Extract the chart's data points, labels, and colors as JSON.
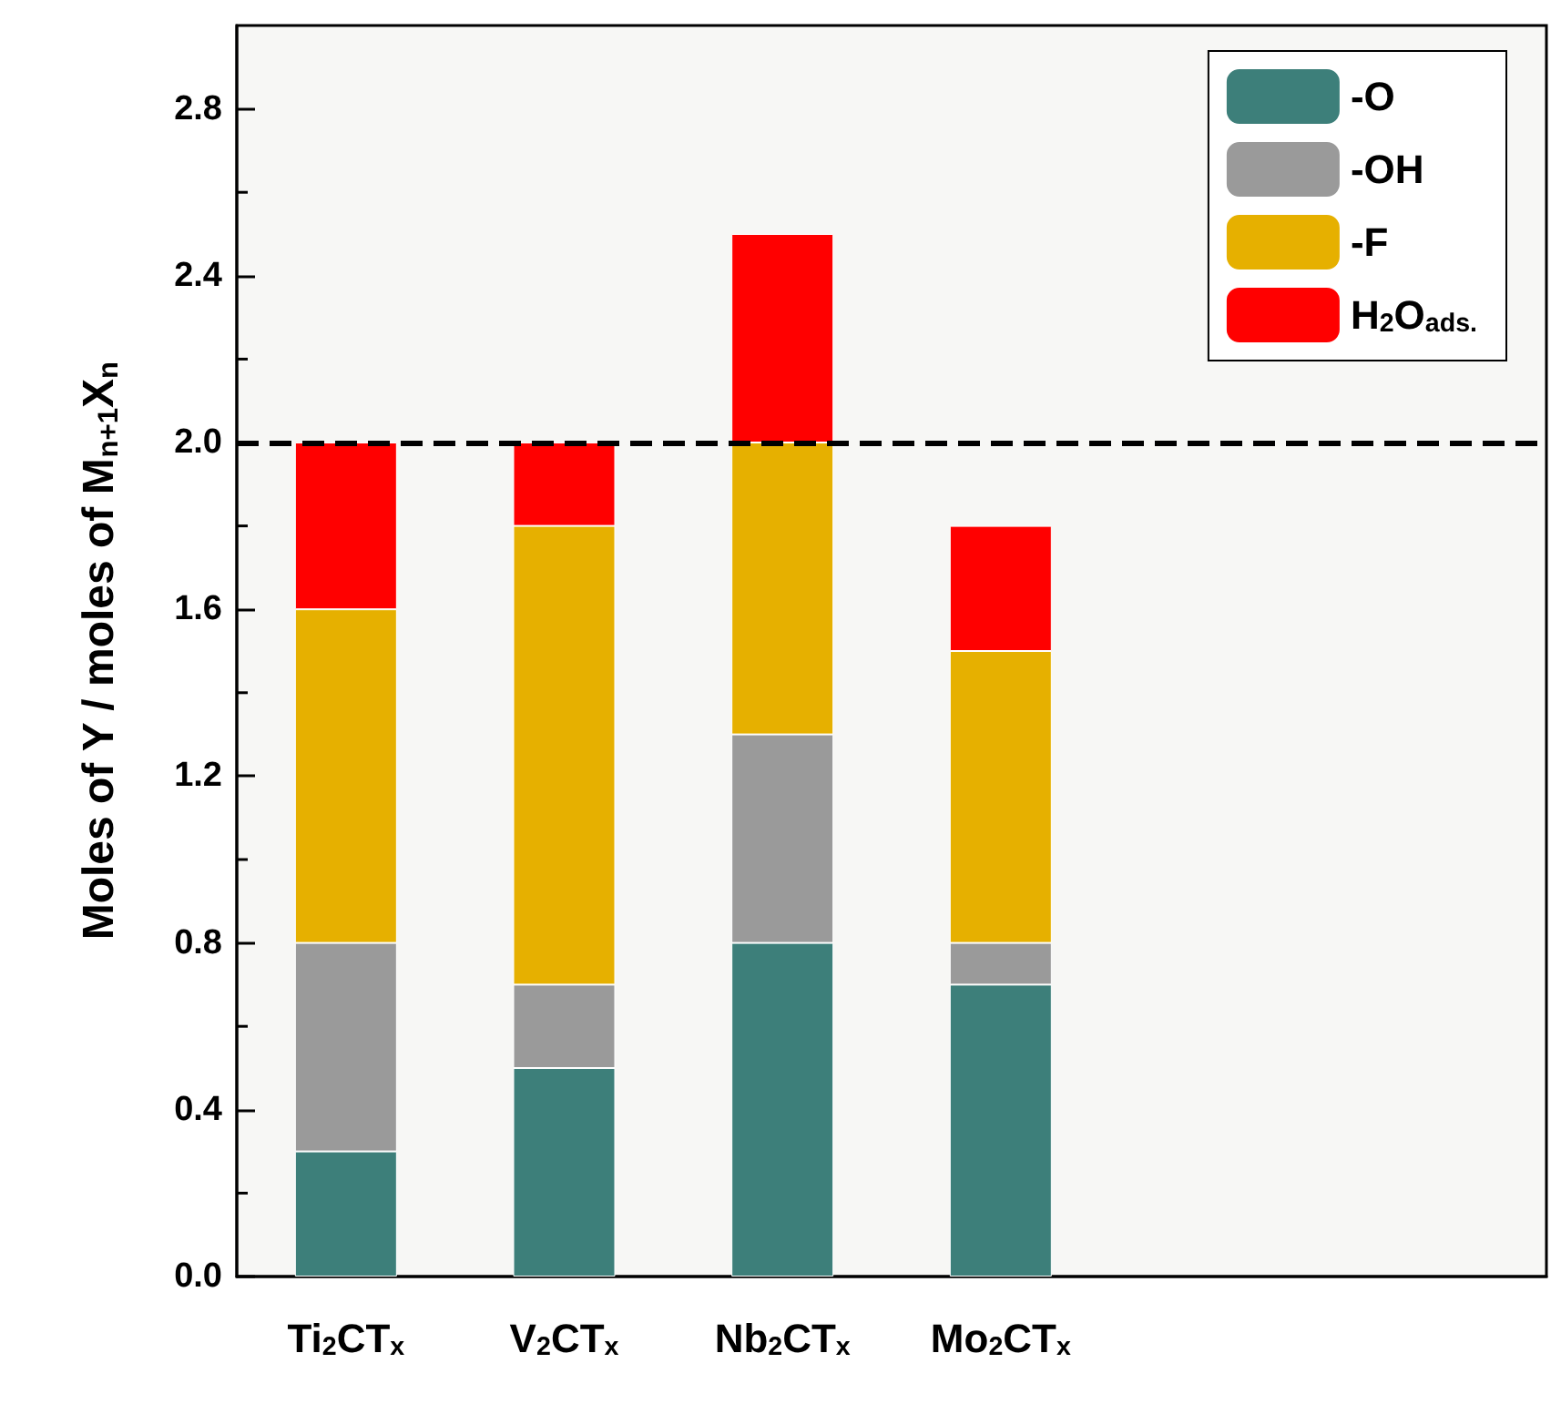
{
  "chart_data": {
    "type": "bar",
    "stacked": true,
    "ylabel": "Moles of Y / moles of M$_{n+1}$X$_{n}$",
    "categories": [
      "Ti$_{2}$CT$_{x}$",
      "V$_{2}$CT$_{x}$",
      "Nb$_{2}$CT$_{x}$",
      "Mo$_{2}$CT$_{x}$",
      null,
      null
    ],
    "series": [
      {
        "name": "-O",
        "color": "#3d7f7a",
        "values": [
          0.3,
          0.5,
          0.8,
          0.7,
          null,
          null
        ]
      },
      {
        "name": "-OH",
        "color": "#9a9a9a",
        "values": [
          0.5,
          0.2,
          0.5,
          0.1,
          null,
          null
        ]
      },
      {
        "name": "-F",
        "color": "#e6b000",
        "values": [
          0.8,
          1.1,
          0.7,
          0.7,
          null,
          null
        ]
      },
      {
        "name": "H$_{2}$O$_{ads.}$",
        "color": "#ff0000",
        "values": [
          0.4,
          0.2,
          0.5,
          0.3,
          null,
          null
        ]
      }
    ],
    "ylim": [
      0,
      3.0
    ],
    "yticks": [
      {
        "value": 0,
        "label": "0.0"
      },
      {
        "value": 0.4,
        "label": "0.4"
      },
      {
        "value": 0.8,
        "label": "0.8"
      },
      {
        "value": 1.2,
        "label": "1.2"
      },
      {
        "value": 1.6,
        "label": "1.6"
      },
      {
        "value": 2.0,
        "label": "2.0"
      },
      {
        "value": 2.4,
        "label": "2.4"
      },
      {
        "value": 2.8,
        "label": "2.8"
      }
    ],
    "ref_lines": [
      {
        "axis": "y",
        "value": 2.0,
        "label": null,
        "color": "#000000",
        "line_style": "dashed"
      }
    ],
    "legend": "top right",
    "grid": false
  }
}
